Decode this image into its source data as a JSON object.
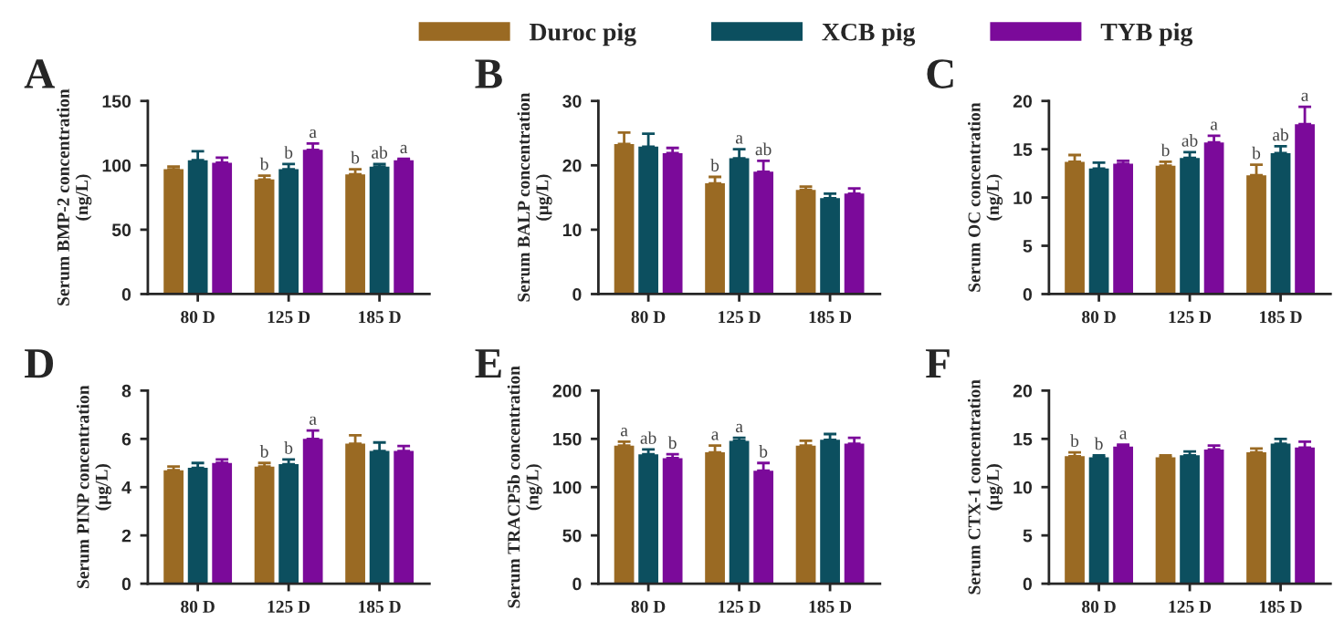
{
  "chart_data": [
    {
      "type": "bar",
      "title": "A",
      "ylabel": "Serum BMP-2 concentration\n(ng/L)",
      "categories": [
        "80 D",
        "125 D",
        "185 D"
      ],
      "ylim": [
        0,
        150
      ],
      "yticks": [
        0,
        50,
        100,
        150
      ],
      "grid": false,
      "legend": "top",
      "series": [
        {
          "name": "Duroc pig",
          "color": "#9a6a23",
          "values": [
            97,
            89,
            93
          ],
          "errors": [
            2,
            3,
            4
          ],
          "value_labels": [
            null,
            "b",
            "b"
          ]
        },
        {
          "name": "XCB pig",
          "color": "#0c4f5f",
          "values": [
            104,
            97,
            99
          ],
          "errors": [
            7,
            4,
            2
          ],
          "value_labels": [
            null,
            "b",
            "ab"
          ]
        },
        {
          "name": "TYB pig",
          "color": "#7b0a9a",
          "values": [
            102,
            112,
            104
          ],
          "errors": [
            4,
            5,
            1
          ],
          "value_labels": [
            null,
            "a",
            "a"
          ]
        }
      ]
    },
    {
      "type": "bar",
      "title": "B",
      "ylabel": "Serum BALP concentration\n(μg/L)",
      "categories": [
        "80 D",
        "125 D",
        "185 D"
      ],
      "ylim": [
        0,
        30
      ],
      "yticks": [
        0,
        10,
        20,
        30
      ],
      "grid": false,
      "series": [
        {
          "color": "#9a6a23",
          "values": [
            23.3,
            17.2,
            16.2
          ],
          "errors": [
            1.8,
            1,
            0.5
          ],
          "value_labels": [
            null,
            "b",
            null
          ]
        },
        {
          "color": "#0c4f5f",
          "values": [
            22.9,
            21.1,
            14.9
          ],
          "errors": [
            2,
            1.4,
            0.7
          ],
          "value_labels": [
            null,
            "a",
            null
          ]
        },
        {
          "color": "#7b0a9a",
          "values": [
            21.9,
            19,
            15.6
          ],
          "errors": [
            0.8,
            1.7,
            0.8
          ],
          "value_labels": [
            null,
            "ab",
            null
          ]
        }
      ]
    },
    {
      "type": "bar",
      "title": "C",
      "ylabel": "Serum OC concentration\n(ng/L)",
      "categories": [
        "80 D",
        "125 D",
        "185 D"
      ],
      "ylim": [
        0,
        20
      ],
      "yticks": [
        0,
        5,
        10,
        15,
        20
      ],
      "grid": false,
      "series": [
        {
          "color": "#9a6a23",
          "values": [
            13.7,
            13.3,
            12.3
          ],
          "errors": [
            0.7,
            0.4,
            1.1
          ],
          "value_labels": [
            null,
            "b",
            "b"
          ]
        },
        {
          "color": "#0c4f5f",
          "values": [
            13.0,
            14.1,
            14.6
          ],
          "errors": [
            0.6,
            0.6,
            0.7
          ],
          "value_labels": [
            null,
            "ab",
            "ab"
          ]
        },
        {
          "color": "#7b0a9a",
          "values": [
            13.5,
            15.7,
            17.6
          ],
          "errors": [
            0.3,
            0.7,
            1.8
          ],
          "value_labels": [
            null,
            "a",
            "a"
          ]
        }
      ]
    },
    {
      "type": "bar",
      "title": "D",
      "ylabel": "Serum PINP concentration\n(μg/L)",
      "categories": [
        "80 D",
        "125 D",
        "185 D"
      ],
      "ylim": [
        0,
        8
      ],
      "yticks": [
        0,
        2,
        4,
        6,
        8
      ],
      "grid": false,
      "series": [
        {
          "color": "#9a6a23",
          "values": [
            4.7,
            4.85,
            5.8
          ],
          "errors": [
            0.15,
            0.15,
            0.35
          ],
          "value_labels": [
            null,
            "b",
            null
          ]
        },
        {
          "color": "#0c4f5f",
          "values": [
            4.8,
            4.95,
            5.5
          ],
          "errors": [
            0.2,
            0.2,
            0.35
          ],
          "value_labels": [
            null,
            "b",
            null
          ]
        },
        {
          "color": "#7b0a9a",
          "values": [
            5.0,
            6.0,
            5.5
          ],
          "errors": [
            0.15,
            0.35,
            0.2
          ],
          "value_labels": [
            null,
            "a",
            null
          ]
        }
      ]
    },
    {
      "type": "bar",
      "title": "E",
      "ylabel": "Serum TRACP5b concentration\n(ng/L)",
      "categories": [
        "80 D",
        "125 D",
        "185 D"
      ],
      "ylim": [
        0,
        200
      ],
      "yticks": [
        0,
        50,
        100,
        150,
        200
      ],
      "grid": false,
      "series": [
        {
          "color": "#9a6a23",
          "values": [
            143,
            136,
            143
          ],
          "errors": [
            4,
            7,
            5
          ],
          "value_labels": [
            "a",
            "a",
            null
          ]
        },
        {
          "color": "#0c4f5f",
          "values": [
            134,
            148,
            149
          ],
          "errors": [
            5,
            3,
            6
          ],
          "value_labels": [
            "ab",
            "a",
            null
          ]
        },
        {
          "color": "#7b0a9a",
          "values": [
            130,
            117,
            145
          ],
          "errors": [
            4,
            8,
            6
          ],
          "value_labels": [
            "b",
            "b",
            null
          ]
        }
      ]
    },
    {
      "type": "bar",
      "title": "F",
      "ylabel": "Serum CTX-1 concentration\n(μg/L)",
      "categories": [
        "80 D",
        "125 D",
        "185 D"
      ],
      "ylim": [
        0,
        20
      ],
      "yticks": [
        0,
        5,
        10,
        15,
        20
      ],
      "grid": false,
      "series": [
        {
          "color": "#9a6a23",
          "values": [
            13.2,
            13.1,
            13.6
          ],
          "errors": [
            0.4,
            0.2,
            0.4
          ],
          "value_labels": [
            "b",
            null,
            null
          ]
        },
        {
          "color": "#0c4f5f",
          "values": [
            13.1,
            13.3,
            14.5
          ],
          "errors": [
            0.2,
            0.4,
            0.5
          ],
          "value_labels": [
            "b",
            null,
            null
          ]
        },
        {
          "color": "#7b0a9a",
          "values": [
            14.2,
            13.9,
            14.1
          ],
          "errors": [
            0.2,
            0.4,
            0.6
          ],
          "value_labels": [
            "a",
            null,
            null
          ]
        }
      ]
    }
  ]
}
